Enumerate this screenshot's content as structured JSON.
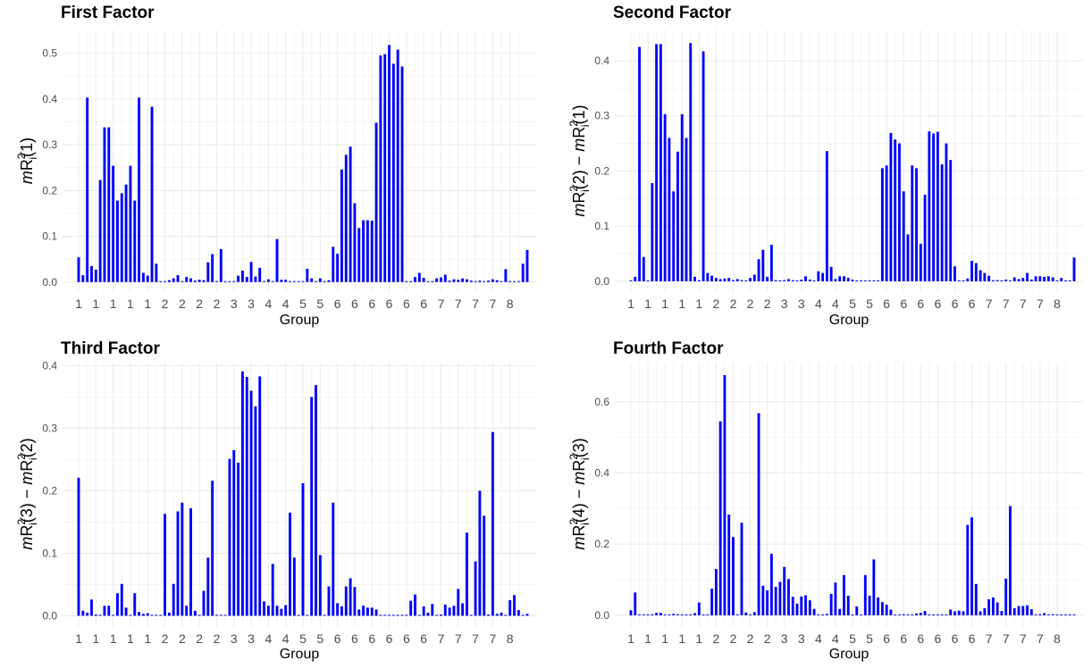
{
  "chart_data": [
    {
      "type": "bar",
      "title": "First Factor",
      "xlabel": "Group",
      "ylabel": {
        "prefix": "m",
        "main": "R",
        "sup": "2",
        "sub": "i",
        "rest": "(1)"
      },
      "ylim": [
        -0.02,
        0.55
      ],
      "yticks": [
        "0.0",
        "0.1",
        "0.2",
        "0.3",
        "0.4",
        "0.5"
      ],
      "xticks": [
        "1",
        "1",
        "1",
        "1",
        "1",
        "2",
        "2",
        "2",
        "2",
        "3",
        "3",
        "4",
        "4",
        "5",
        "5",
        "6",
        "6",
        "6",
        "6",
        "6",
        "6",
        "7",
        "7",
        "7",
        "7",
        "8"
      ],
      "bar_color": "#0000ff",
      "values": [
        0.054,
        0.015,
        0.403,
        0.035,
        0.027,
        0.223,
        0.338,
        0.338,
        0.254,
        0.178,
        0.194,
        0.213,
        0.254,
        0.178,
        0.403,
        0.02,
        0.014,
        0.383,
        0.04,
        0.0,
        0.001,
        0.004,
        0.008,
        0.015,
        0.002,
        0.011,
        0.008,
        0.003,
        0.005,
        0.004,
        0.043,
        0.061,
        0.002,
        0.072,
        0.001,
        0.0,
        0.001,
        0.014,
        0.025,
        0.011,
        0.044,
        0.012,
        0.031,
        0.002,
        0.006,
        0.002,
        0.094,
        0.005,
        0.005,
        0.0,
        0.001,
        0.002,
        0.002,
        0.029,
        0.008,
        0.002,
        0.008,
        0.001,
        0.004,
        0.077,
        0.062,
        0.246,
        0.278,
        0.296,
        0.172,
        0.118,
        0.135,
        0.135,
        0.134,
        0.348,
        0.495,
        0.498,
        0.518,
        0.477,
        0.508,
        0.471,
        0.0,
        0.002,
        0.011,
        0.02,
        0.009,
        0.001,
        0.001,
        0.008,
        0.01,
        0.016,
        0.003,
        0.006,
        0.005,
        0.008,
        0.006,
        0.003,
        0.002,
        0.003,
        0.002,
        0.003,
        0.006,
        0.004,
        0.0,
        0.028,
        0.001,
        0.0,
        0.002,
        0.04,
        0.07
      ]
    },
    {
      "type": "bar",
      "title": "Second Factor",
      "xlabel": "Group",
      "ylabel": {
        "prefix": "m",
        "main": "R",
        "sup": "2",
        "sub": "i",
        "rest": "(2) − ",
        "prefix2": "m",
        "main2": "R",
        "sup2": "2",
        "sub2": "i",
        "rest2": "(1)"
      },
      "ylim": [
        -0.018,
        0.455
      ],
      "yticks": [
        "0.0",
        "0.1",
        "0.2",
        "0.3",
        "0.4"
      ],
      "xticks": [
        "1",
        "1",
        "1",
        "1",
        "1",
        "2",
        "2",
        "2",
        "2",
        "3",
        "3",
        "4",
        "4",
        "5",
        "5",
        "6",
        "6",
        "6",
        "6",
        "6",
        "6",
        "7",
        "7",
        "7",
        "7",
        "8"
      ],
      "bar_color": "#0000ff",
      "values": [
        0.0,
        0.008,
        0.425,
        0.044,
        0.001,
        0.178,
        0.43,
        0.43,
        0.303,
        0.26,
        0.163,
        0.235,
        0.303,
        0.26,
        0.432,
        0.008,
        0.002,
        0.417,
        0.015,
        0.01,
        0.006,
        0.004,
        0.005,
        0.006,
        0.002,
        0.004,
        0.002,
        0.001,
        0.006,
        0.012,
        0.04,
        0.057,
        0.008,
        0.066,
        0.002,
        0.001,
        0.002,
        0.004,
        0.002,
        0.001,
        0.003,
        0.009,
        0.003,
        0.0,
        0.018,
        0.015,
        0.236,
        0.026,
        0.004,
        0.009,
        0.009,
        0.006,
        0.003,
        0.001,
        0.0,
        0.001,
        0.0,
        0.0,
        0.001,
        0.205,
        0.21,
        0.269,
        0.257,
        0.25,
        0.163,
        0.085,
        0.21,
        0.205,
        0.068,
        0.157,
        0.272,
        0.268,
        0.271,
        0.212,
        0.25,
        0.22,
        0.027,
        0.0,
        0.001,
        0.005,
        0.037,
        0.033,
        0.02,
        0.015,
        0.01,
        0.002,
        0.002,
        0.001,
        0.003,
        0.001,
        0.007,
        0.004,
        0.006,
        0.015,
        0.003,
        0.009,
        0.009,
        0.008,
        0.009,
        0.007,
        0.001,
        0.006,
        0.0,
        0.001,
        0.043
      ]
    },
    {
      "type": "bar",
      "title": "Third Factor",
      "xlabel": "Group",
      "ylabel": {
        "prefix": "m",
        "main": "R",
        "sup": "2",
        "sub": "i",
        "rest": "(3) − ",
        "prefix2": "m",
        "main2": "R",
        "sup2": "2",
        "sub2": "i",
        "rest2": "(2)"
      },
      "ylim": [
        -0.018,
        0.405
      ],
      "yticks": [
        "0.0",
        "0.1",
        "0.2",
        "0.3",
        "0.4"
      ],
      "xticks": [
        "1",
        "1",
        "1",
        "1",
        "1",
        "2",
        "2",
        "2",
        "2",
        "3",
        "3",
        "4",
        "4",
        "5",
        "5",
        "6",
        "6",
        "6",
        "6",
        "6",
        "6",
        "7",
        "7",
        "7",
        "7",
        "8"
      ],
      "bar_color": "#0000ff",
      "values": [
        0.221,
        0.008,
        0.005,
        0.026,
        0.002,
        0.0,
        0.016,
        0.016,
        0.001,
        0.036,
        0.051,
        0.013,
        0.001,
        0.036,
        0.006,
        0.003,
        0.004,
        0.0,
        0.0,
        0.0,
        0.163,
        0.005,
        0.051,
        0.167,
        0.181,
        0.016,
        0.172,
        0.008,
        0.0,
        0.04,
        0.093,
        0.216,
        0.0,
        0.0,
        0.001,
        0.251,
        0.265,
        0.245,
        0.391,
        0.382,
        0.36,
        0.335,
        0.383,
        0.023,
        0.016,
        0.083,
        0.016,
        0.011,
        0.017,
        0.165,
        0.093,
        0.0,
        0.212,
        0.0,
        0.35,
        0.369,
        0.097,
        0.0,
        0.047,
        0.181,
        0.02,
        0.015,
        0.047,
        0.06,
        0.046,
        0.01,
        0.016,
        0.013,
        0.013,
        0.01,
        0.001,
        0.001,
        0.001,
        0.001,
        0.0,
        0.001,
        0.001,
        0.024,
        0.034,
        0.0,
        0.015,
        0.005,
        0.019,
        0.0,
        0.002,
        0.018,
        0.013,
        0.016,
        0.043,
        0.02,
        0.133,
        0.0,
        0.087,
        0.2,
        0.16,
        0.002,
        0.294,
        0.003,
        0.005,
        0.0,
        0.025,
        0.033,
        0.009,
        0.001,
        0.003
      ]
    },
    {
      "type": "bar",
      "title": "Fourth Factor",
      "xlabel": "Group",
      "ylabel": {
        "prefix": "m",
        "main": "R",
        "sup": "2",
        "sub": "i",
        "rest": "(4) − ",
        "prefix2": "m",
        "main2": "R",
        "sup2": "2",
        "sub2": "i",
        "rest2": "(3)"
      },
      "ylim": [
        -0.033,
        0.71
      ],
      "yticks": [
        "0.0",
        "0.2",
        "0.4",
        "0.6"
      ],
      "xticks": [
        "1",
        "1",
        "1",
        "1",
        "1",
        "2",
        "2",
        "2",
        "2",
        "3",
        "3",
        "4",
        "4",
        "5",
        "5",
        "6",
        "6",
        "6",
        "6",
        "6",
        "6",
        "7",
        "7",
        "7",
        "7",
        "8"
      ],
      "bar_color": "#0000ff",
      "values": [
        0.014,
        0.064,
        0.001,
        0.0,
        0.0,
        0.003,
        0.007,
        0.007,
        0.0,
        0.0,
        0.004,
        0.003,
        0.0,
        0.0,
        0.0,
        0.006,
        0.036,
        0.0,
        0.0,
        0.075,
        0.13,
        0.545,
        0.675,
        0.283,
        0.22,
        0.001,
        0.26,
        0.008,
        0.0,
        0.009,
        0.568,
        0.083,
        0.07,
        0.173,
        0.08,
        0.094,
        0.136,
        0.102,
        0.052,
        0.033,
        0.053,
        0.056,
        0.042,
        0.018,
        0.0,
        0.001,
        0.004,
        0.06,
        0.092,
        0.018,
        0.113,
        0.055,
        0.002,
        0.025,
        0.0,
        0.113,
        0.055,
        0.157,
        0.05,
        0.037,
        0.03,
        0.016,
        0.0,
        0.0,
        0.003,
        0.002,
        0.001,
        0.005,
        0.007,
        0.012,
        0.001,
        0.0,
        0.001,
        0.0,
        0.0,
        0.016,
        0.011,
        0.013,
        0.011,
        0.254,
        0.275,
        0.088,
        0.011,
        0.02,
        0.045,
        0.05,
        0.036,
        0.012,
        0.103,
        0.307,
        0.02,
        0.026,
        0.026,
        0.028,
        0.017,
        0.0,
        0.003,
        0.006,
        0.001,
        0.003,
        0.002,
        0.002,
        0.001,
        0.001,
        0.001
      ]
    }
  ]
}
